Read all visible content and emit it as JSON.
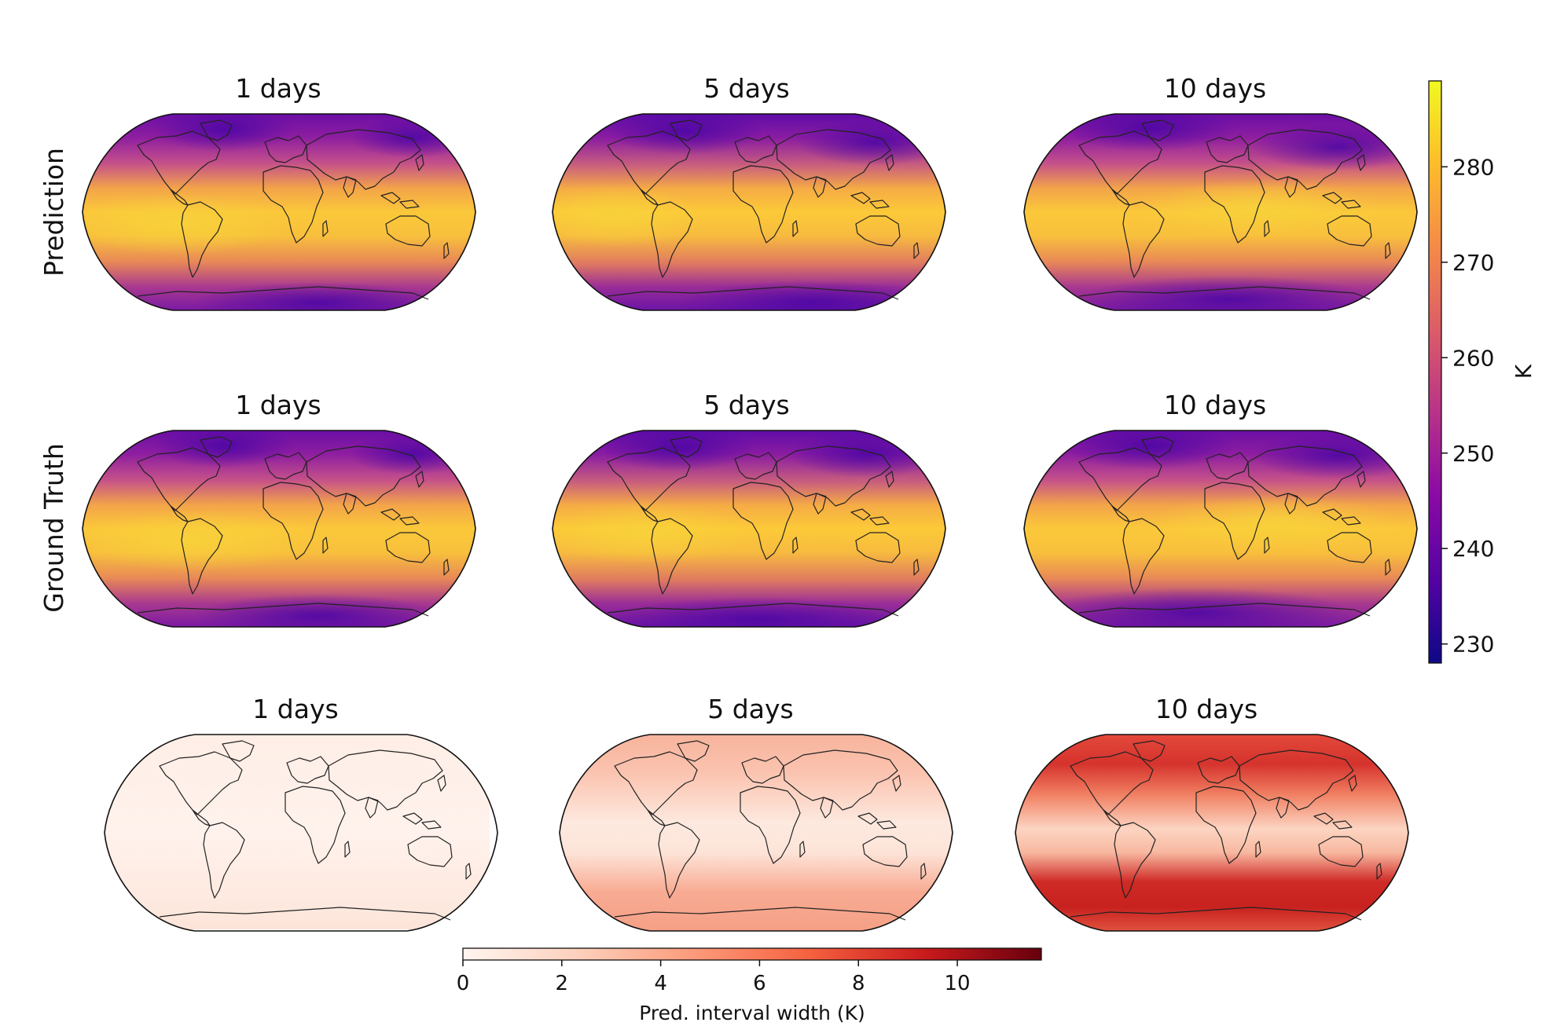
{
  "chart_data": [
    {
      "type": "heatmap",
      "row_label": "Prediction",
      "panels": [
        {
          "title": "1 days"
        },
        {
          "title": "5 days"
        },
        {
          "title": "10 days"
        }
      ],
      "colormap": "plasma"
    },
    {
      "type": "heatmap",
      "row_label": "Ground Truth",
      "panels": [
        {
          "title": "1 days"
        },
        {
          "title": "5 days"
        },
        {
          "title": "10 days"
        }
      ],
      "colormap": "plasma"
    },
    {
      "type": "heatmap",
      "row_label": "",
      "panels": [
        {
          "title": "1 days"
        },
        {
          "title": "5 days"
        },
        {
          "title": "10 days"
        }
      ],
      "colormap": "reds"
    }
  ],
  "colorbars": {
    "temperature": {
      "label": "K",
      "range": [
        228,
        289
      ],
      "ticks": [
        230,
        240,
        250,
        260,
        270,
        280
      ],
      "tick_labels": [
        "230",
        "240",
        "250",
        "260",
        "270",
        "280"
      ],
      "orientation": "vertical",
      "placement": "right"
    },
    "interval_width": {
      "label": "Pred. interval width (K)",
      "range": [
        0,
        11.7
      ],
      "ticks": [
        0,
        2,
        4,
        6,
        8,
        10
      ],
      "tick_labels": [
        "0",
        "2",
        "4",
        "6",
        "8",
        "10"
      ],
      "orientation": "horizontal",
      "placement": "bottom"
    }
  },
  "colors": {
    "plasma": [
      "#0d0887",
      "#5302a3",
      "#8b0aa5",
      "#b83289",
      "#db5c68",
      "#f48849",
      "#febd2a",
      "#f0f921"
    ],
    "reds": [
      "#fff5f0",
      "#fdd0bc",
      "#fc9a7a",
      "#f5613f",
      "#c91a1c",
      "#67000d"
    ],
    "map_outline": "#111111",
    "coastline": "#222222"
  }
}
